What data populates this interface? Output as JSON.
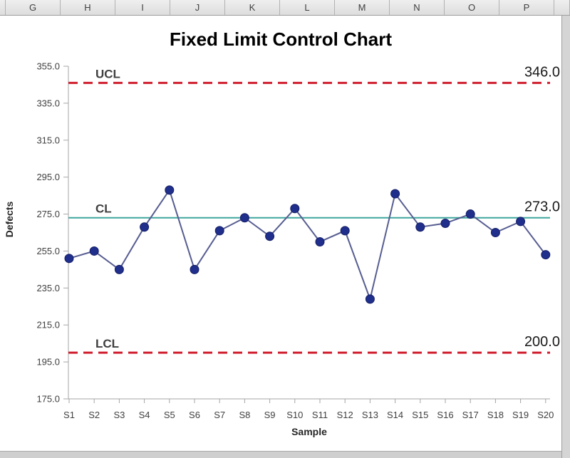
{
  "spreadsheet": {
    "column_headers": [
      "G",
      "H",
      "I",
      "J",
      "K",
      "L",
      "M",
      "N",
      "O",
      "P"
    ]
  },
  "chart_data": {
    "type": "line",
    "title": "Fixed Limit Control Chart",
    "xlabel": "Sample",
    "ylabel": "Defects",
    "categories": [
      "S1",
      "S2",
      "S3",
      "S4",
      "S5",
      "S6",
      "S7",
      "S8",
      "S9",
      "S10",
      "S11",
      "S12",
      "S13",
      "S14",
      "S15",
      "S16",
      "S17",
      "S18",
      "S19",
      "S20"
    ],
    "series": [
      {
        "name": "Defects",
        "values": [
          251,
          255,
          245,
          268,
          288,
          245,
          266,
          273,
          263,
          278,
          260,
          266,
          229,
          286,
          268,
          270,
          275,
          265,
          271,
          253
        ]
      }
    ],
    "reference_lines": [
      {
        "name": "UCL",
        "label": "UCL",
        "value": 346,
        "value_label": "346.0",
        "style": "dashed",
        "color": "#d01f2f"
      },
      {
        "name": "CL",
        "label": "CL",
        "value": 273,
        "value_label": "273.0",
        "style": "solid",
        "color": "#3fa79e"
      },
      {
        "name": "LCL",
        "label": "LCL",
        "value": 200,
        "value_label": "200.0",
        "style": "dashed",
        "color": "#d01f2f"
      }
    ],
    "ylim": [
      175,
      355
    ],
    "ytick_step": 20,
    "ytick_labels": [
      "355.0",
      "335.0",
      "315.0",
      "295.0",
      "275.0",
      "255.0",
      "235.0",
      "215.0",
      "195.0",
      "175.0"
    ],
    "grid": false,
    "legend": false,
    "colors": {
      "series_line": "#575d91",
      "marker": "#202e8c",
      "marker_edge": "#141f66",
      "axis": "#a6a6a6",
      "tick_text": "#404040",
      "ref_label_text": "#3f3f3f",
      "ref_value_text": "#1a1a1a"
    }
  }
}
